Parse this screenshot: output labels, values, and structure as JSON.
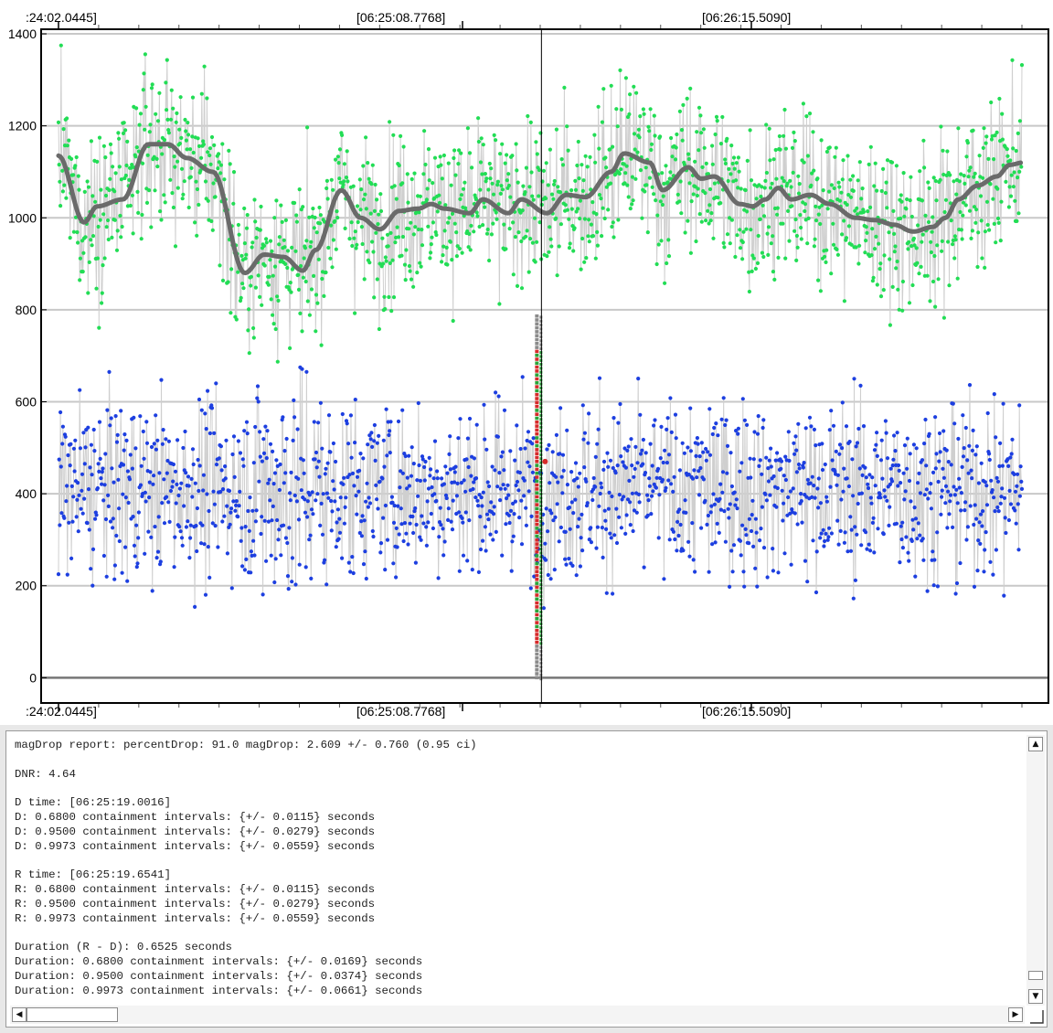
{
  "chart_data": {
    "type": "scatter",
    "x_tick_labels": [
      ":24:02.0445]",
      "[06:25:08.7768]",
      "[06:26:15.5090]"
    ],
    "y_ticks": [
      0,
      200,
      400,
      600,
      800,
      1000,
      1200,
      1400
    ],
    "ylim": [
      -55,
      1410
    ],
    "grid": true,
    "cursor_index": 750,
    "n_points": 1500,
    "series": [
      {
        "role": "light-curve",
        "color": "#1d3fe0",
        "baseline": 410,
        "noise": 95,
        "dips_near_event": [
          250,
          300,
          280,
          320
        ]
      },
      {
        "role": "comparison",
        "color": "#22dd55",
        "noise": 85
      },
      {
        "role": "comparison-smoothed",
        "color": "#6a6a6a",
        "x_index": [
          0,
          40,
          60,
          100,
          140,
          170,
          200,
          240,
          290,
          320,
          350,
          380,
          400,
          440,
          470,
          500,
          530,
          560,
          580,
          600,
          640,
          660,
          700,
          720,
          760,
          790,
          820,
          860,
          880,
          920,
          940,
          980,
          1000,
          1020,
          1060,
          1080,
          1100,
          1120,
          1140,
          1170,
          1200,
          1240,
          1270,
          1300,
          1330,
          1360,
          1380,
          1400,
          1430,
          1460,
          1480,
          1500
        ],
        "values": [
          1135,
          990,
          1025,
          1040,
          1160,
          1160,
          1130,
          1100,
          880,
          920,
          915,
          885,
          930,
          1060,
          1000,
          975,
          1015,
          1020,
          1030,
          1020,
          1010,
          1040,
          1010,
          1040,
          1010,
          1050,
          1045,
          1100,
          1140,
          1120,
          1060,
          1110,
          1085,
          1090,
          1030,
          1025,
          1040,
          1065,
          1040,
          1050,
          1030,
          1000,
          995,
          985,
          970,
          980,
          1000,
          1040,
          1070,
          1090,
          1115,
          1120
        ]
      },
      {
        "role": "event-markers",
        "colors": [
          "#d62a2a",
          "#2aa43a",
          "#8a8a8a"
        ],
        "y_range": [
          0,
          790
        ]
      }
    ]
  },
  "report": {
    "lines": [
      "magDrop report: percentDrop: 91.0 magDrop: 2.609 +/- 0.760 (0.95 ci)",
      "",
      "DNR: 4.64",
      "",
      "D time: [06:25:19.0016]",
      "D: 0.6800 containment intervals: {+/- 0.0115} seconds",
      "D: 0.9500 containment intervals: {+/- 0.0279} seconds",
      "D: 0.9973 containment intervals: {+/- 0.0559} seconds",
      "",
      "R time: [06:25:19.6541]",
      "R: 0.6800 containment intervals: {+/- 0.0115} seconds",
      "R: 0.9500 containment intervals: {+/- 0.0279} seconds",
      "R: 0.9973 containment intervals: {+/- 0.0559} seconds",
      "",
      "Duration (R - D): 0.6525 seconds",
      "Duration: 0.6800 containment intervals: {+/- 0.0169} seconds",
      "Duration: 0.9500 containment intervals: {+/- 0.0374} seconds",
      "Duration: 0.9973 containment intervals: {+/- 0.0661} seconds"
    ]
  },
  "scrollbar": {
    "up_icon": "up-arrow-icon",
    "down_icon": "down-arrow-icon",
    "left_icon": "left-arrow-icon",
    "right_icon": "right-arrow-icon"
  }
}
